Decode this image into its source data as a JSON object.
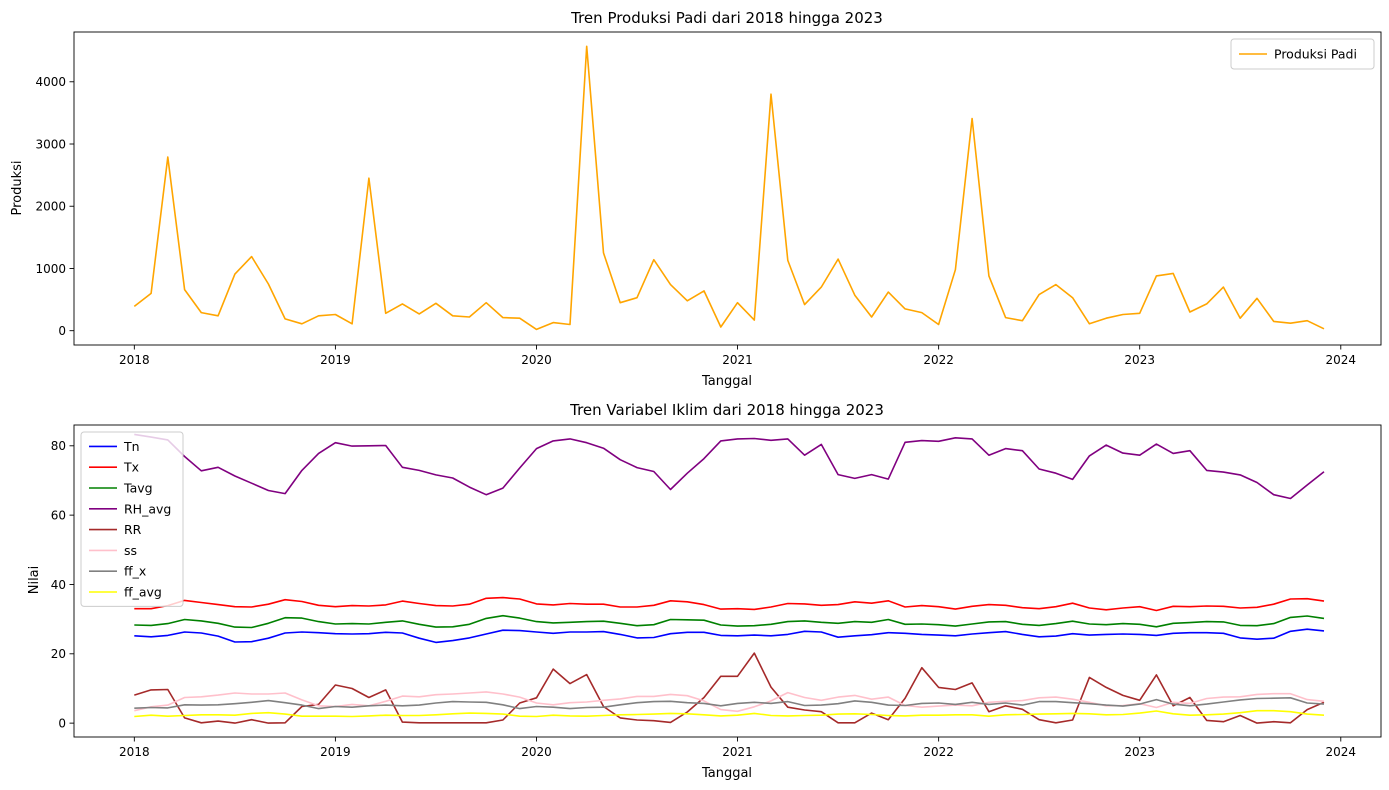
{
  "chart_data": [
    {
      "type": "line",
      "title": "Tren Produksi Padi dari 2018 hingga 2023",
      "xlabel": "Tanggal",
      "ylabel": "Produksi",
      "xlim": [
        2017.7,
        2024.2
      ],
      "ylim": [
        -230,
        4800
      ],
      "xticks": [
        2018,
        2019,
        2020,
        2021,
        2022,
        2023,
        2024
      ],
      "yticks": [
        0,
        1000,
        2000,
        3000,
        4000
      ],
      "legend": "top-right",
      "x_start": 2018,
      "x_step": 0.08333,
      "series": [
        {
          "name": "Produksi Padi",
          "color": "#FFA500",
          "values": [
            390,
            600,
            2790,
            660,
            290,
            240,
            910,
            1190,
            750,
            190,
            110,
            240,
            260,
            110,
            2450,
            280,
            430,
            270,
            440,
            240,
            220,
            450,
            210,
            200,
            20,
            130,
            100,
            4570,
            1250,
            450,
            530,
            1140,
            740,
            480,
            640,
            60,
            450,
            170,
            3800,
            1130,
            420,
            700,
            1150,
            570,
            220,
            620,
            350,
            290,
            100,
            980,
            3410,
            880,
            210,
            160,
            580,
            740,
            530,
            110,
            200,
            260,
            280,
            880,
            920,
            300,
            430,
            700,
            200,
            520,
            150,
            120,
            160,
            30
          ]
        }
      ]
    },
    {
      "type": "line",
      "title": "Tren Variabel Iklim dari 2018 hingga 2023",
      "xlabel": "Tanggal",
      "ylabel": "Nilai",
      "xlim": [
        2017.7,
        2024.2
      ],
      "ylim": [
        -4,
        86
      ],
      "xticks": [
        2018,
        2019,
        2020,
        2021,
        2022,
        2023,
        2024
      ],
      "yticks": [
        0,
        20,
        40,
        60,
        80
      ],
      "legend": "top-left",
      "x_start": 2018,
      "x_step": 0.08333,
      "series": [
        {
          "name": "Tn",
          "color": "#0000FF",
          "values": [
            25.2,
            24.9,
            25.3,
            26.3,
            26.0,
            25.1,
            23.4,
            23.5,
            24.5,
            26.0,
            26.3,
            26.1,
            25.8,
            25.7,
            25.8,
            26.2,
            26.0,
            24.5,
            23.3,
            23.8,
            24.6,
            25.7,
            26.8,
            26.7,
            26.3,
            25.9,
            26.3,
            26.3,
            26.4,
            25.6,
            24.6,
            24.7,
            25.8,
            26.2,
            26.2,
            25.3,
            25.2,
            25.4,
            25.2,
            25.6,
            26.5,
            26.3,
            24.8,
            25.2,
            25.5,
            26.1,
            25.9,
            25.6,
            25.4,
            25.2,
            25.7,
            26.1,
            26.4,
            25.6,
            24.9,
            25.1,
            25.8,
            25.4,
            25.6,
            25.7,
            25.6,
            25.3,
            25.9,
            26.1,
            26.1,
            25.9,
            24.6,
            24.2,
            24.5,
            26.5,
            27.1,
            26.6
          ]
        },
        {
          "name": "Tx",
          "color": "#FF0000",
          "values": [
            33.0,
            33.0,
            33.9,
            35.4,
            34.8,
            34.2,
            33.6,
            33.5,
            34.3,
            35.6,
            35.1,
            34.0,
            33.6,
            33.9,
            33.8,
            34.1,
            35.2,
            34.5,
            33.9,
            33.8,
            34.3,
            36.0,
            36.2,
            35.8,
            34.4,
            34.1,
            34.5,
            34.3,
            34.3,
            33.5,
            33.5,
            34.0,
            35.3,
            35.0,
            34.2,
            32.9,
            33.0,
            32.8,
            33.5,
            34.5,
            34.4,
            34.0,
            34.2,
            35.0,
            34.6,
            35.3,
            33.5,
            33.9,
            33.6,
            32.9,
            33.7,
            34.2,
            34.0,
            33.3,
            33.0,
            33.6,
            34.6,
            33.2,
            32.7,
            33.2,
            33.6,
            32.5,
            33.7,
            33.6,
            33.8,
            33.7,
            33.2,
            33.4,
            34.3,
            35.8,
            35.9,
            35.2
          ]
        },
        {
          "name": "Tavg",
          "color": "#008000",
          "values": [
            28.3,
            28.2,
            28.7,
            29.9,
            29.5,
            28.8,
            27.7,
            27.6,
            28.8,
            30.4,
            30.3,
            29.3,
            28.6,
            28.7,
            28.6,
            29.1,
            29.5,
            28.5,
            27.7,
            27.8,
            28.5,
            30.2,
            31.0,
            30.3,
            29.3,
            28.9,
            29.1,
            29.3,
            29.4,
            28.8,
            28.1,
            28.4,
            29.9,
            29.8,
            29.7,
            28.3,
            28.0,
            28.1,
            28.5,
            29.3,
            29.5,
            29.1,
            28.8,
            29.3,
            29.1,
            29.9,
            28.5,
            28.6,
            28.4,
            28.0,
            28.6,
            29.2,
            29.3,
            28.5,
            28.2,
            28.7,
            29.4,
            28.6,
            28.4,
            28.7,
            28.5,
            27.8,
            28.8,
            29.0,
            29.3,
            29.2,
            28.2,
            28.1,
            28.7,
            30.5,
            30.9,
            30.2
          ]
        },
        {
          "name": "RH_avg",
          "color": "#800080",
          "values": [
            83.3,
            82.5,
            81.7,
            76.9,
            72.8,
            73.8,
            71.3,
            69.2,
            67.1,
            66.2,
            72.9,
            77.8,
            80.9,
            79.9,
            80.0,
            80.1,
            73.8,
            72.9,
            71.6,
            70.7,
            68.1,
            65.9,
            67.8,
            73.6,
            79.2,
            81.4,
            82.0,
            80.9,
            79.3,
            76.0,
            73.7,
            72.6,
            67.4,
            72.1,
            76.3,
            81.4,
            82.0,
            82.1,
            81.6,
            82.0,
            77.3,
            80.4,
            71.7,
            70.6,
            71.7,
            70.4,
            81.0,
            81.5,
            81.3,
            82.3,
            82.0,
            77.3,
            79.2,
            78.6,
            73.3,
            72.1,
            70.3,
            77.1,
            80.2,
            77.9,
            77.3,
            80.5,
            77.8,
            78.6,
            72.9,
            72.4,
            71.6,
            69.4,
            65.9,
            64.8,
            68.7,
            72.5
          ]
        },
        {
          "name": "RR",
          "color": "#A52A2A",
          "values": [
            8.1,
            9.6,
            9.7,
            1.5,
            0.1,
            0.6,
            0.0,
            1.0,
            0.0,
            0.1,
            4.8,
            5.4,
            11.0,
            10.0,
            7.4,
            9.6,
            0.3,
            0.1,
            0.1,
            0.1,
            0.1,
            0.1,
            0.9,
            5.8,
            7.3,
            15.6,
            11.4,
            14.0,
            4.8,
            1.5,
            0.9,
            0.7,
            0.2,
            3.2,
            7.4,
            13.5,
            13.5,
            20.2,
            10.4,
            4.6,
            3.8,
            3.3,
            0.1,
            0.1,
            2.9,
            1.0,
            7.2,
            16.0,
            10.3,
            9.7,
            11.6,
            3.3,
            5.0,
            4.0,
            1.0,
            0.1,
            0.9,
            13.2,
            10.3,
            8.0,
            6.6,
            13.9,
            5.0,
            7.4,
            0.8,
            0.4,
            2.2,
            0.0,
            0.4,
            0.1,
            3.9,
            6.0
          ]
        },
        {
          "name": "ss",
          "color": "#FFC0CB",
          "values": [
            3.6,
            4.7,
            5.2,
            7.4,
            7.6,
            8.1,
            8.7,
            8.4,
            8.4,
            8.7,
            6.7,
            5.0,
            4.8,
            5.4,
            5.0,
            6.3,
            7.8,
            7.6,
            8.2,
            8.4,
            8.7,
            9.0,
            8.4,
            7.5,
            5.8,
            5.3,
            5.9,
            6.1,
            6.6,
            7.0,
            7.7,
            7.7,
            8.3,
            7.9,
            6.4,
            3.9,
            3.4,
            4.7,
            6.4,
            8.8,
            7.4,
            6.6,
            7.5,
            8.0,
            6.9,
            7.5,
            5.1,
            4.6,
            4.9,
            5.2,
            5.0,
            6.0,
            6.3,
            6.5,
            7.3,
            7.5,
            6.9,
            6.0,
            5.0,
            5.1,
            5.6,
            4.5,
            6.0,
            5.7,
            7.1,
            7.5,
            7.6,
            8.3,
            8.5,
            8.5,
            6.8,
            6.3
          ]
        },
        {
          "name": "ff_x",
          "color": "#808080",
          "values": [
            4.3,
            4.5,
            4.4,
            5.3,
            5.2,
            5.3,
            5.6,
            6.0,
            6.5,
            5.9,
            5.2,
            4.2,
            4.8,
            4.6,
            5.0,
            5.2,
            5.0,
            5.2,
            5.8,
            6.2,
            6.1,
            6.0,
            5.3,
            4.2,
            4.8,
            4.6,
            4.2,
            4.5,
            4.6,
            5.3,
            5.9,
            6.2,
            6.3,
            5.9,
            5.7,
            5.0,
            5.7,
            6.0,
            5.7,
            6.2,
            5.1,
            5.2,
            5.6,
            6.4,
            6.0,
            5.2,
            5.1,
            5.7,
            5.8,
            5.4,
            6.0,
            5.4,
            5.8,
            5.2,
            6.2,
            6.2,
            5.9,
            5.6,
            5.2,
            4.9,
            5.5,
            6.8,
            5.5,
            5.0,
            5.5,
            6.1,
            6.7,
            7.1,
            7.2,
            7.3,
            5.8,
            5.5
          ]
        },
        {
          "name": "ff_avg",
          "color": "#FFFF00",
          "values": [
            1.9,
            2.3,
            2.0,
            2.2,
            2.4,
            2.4,
            2.3,
            2.8,
            3.0,
            2.6,
            2.0,
            2.0,
            2.0,
            1.9,
            2.1,
            2.3,
            2.2,
            2.2,
            2.4,
            2.7,
            2.9,
            2.8,
            2.6,
            2.0,
            1.9,
            2.3,
            2.1,
            2.0,
            2.2,
            2.4,
            2.5,
            2.6,
            2.8,
            2.7,
            2.4,
            2.1,
            2.3,
            2.8,
            2.2,
            2.1,
            2.2,
            2.3,
            2.6,
            2.7,
            2.5,
            2.2,
            2.1,
            2.3,
            2.3,
            2.4,
            2.4,
            2.0,
            2.4,
            2.5,
            2.6,
            2.7,
            2.8,
            2.7,
            2.4,
            2.5,
            2.9,
            3.5,
            2.7,
            2.3,
            2.4,
            2.6,
            3.0,
            3.6,
            3.6,
            3.3,
            2.6,
            2.3
          ]
        }
      ]
    }
  ]
}
